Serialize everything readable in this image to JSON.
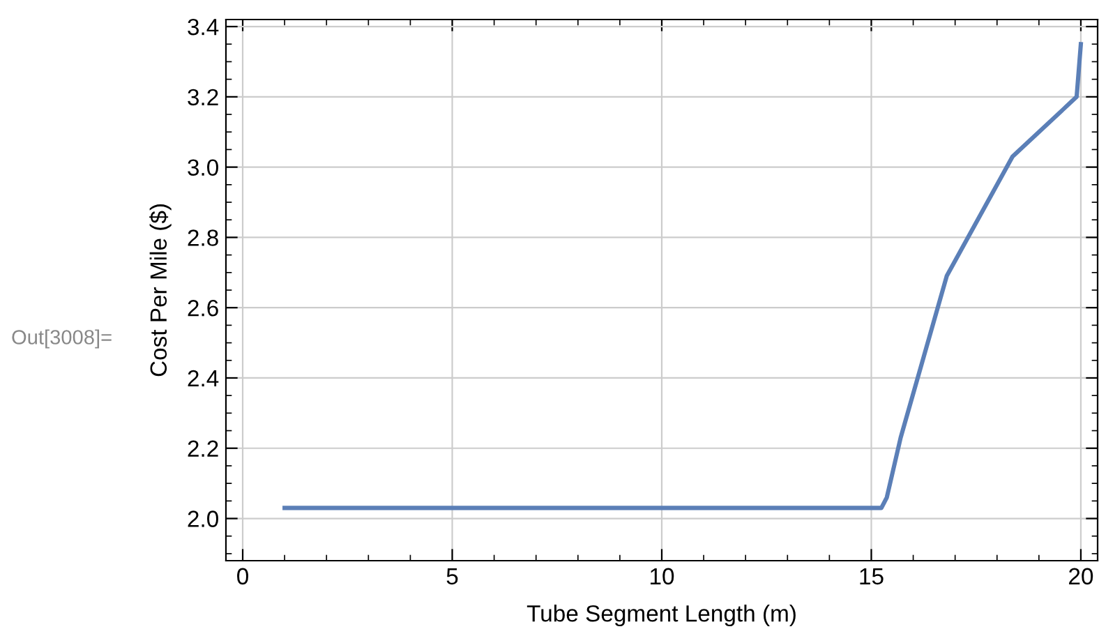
{
  "chart_data": {
    "type": "line",
    "xlabel": "Tube Segment Length (m)",
    "ylabel": "Cost Per Mile ($)",
    "annotations": [
      "Out[3008]="
    ],
    "x": [
      1,
      15.24,
      15.37,
      15.7,
      16.8,
      18.37,
      19.9,
      20
    ],
    "series": [
      {
        "color": "#5b7fb7",
        "values": [
          2.03,
          2.03,
          2.06,
          2.23,
          2.69,
          3.03,
          3.2,
          3.35
        ]
      }
    ],
    "xlim": [
      -0.4,
      20.4
    ],
    "ylim": [
      1.88,
      3.42
    ],
    "xticks": [
      0,
      5,
      10,
      15,
      20
    ],
    "yticks": [
      {
        "value": 2,
        "label": "2.0"
      },
      2.2,
      2.4,
      2.6,
      2.8,
      {
        "value": 3,
        "label": "3.0"
      },
      3.2,
      3.4
    ],
    "grid": true,
    "marker": "none",
    "line_style": "solid"
  }
}
